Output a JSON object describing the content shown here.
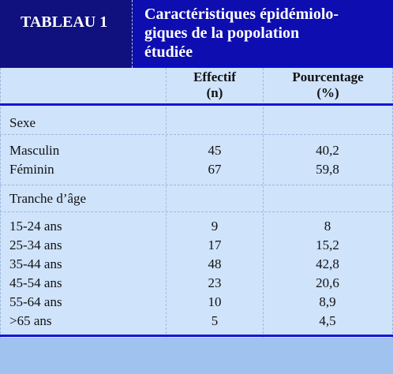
{
  "table": {
    "label": "TABLEAU 1",
    "title_lines": [
      "Caractéristiques épidémiolo-",
      "giques de la popolation",
      "étudiée"
    ],
    "columns": {
      "effectif": [
        "Effectif",
        "(n)"
      ],
      "pourcentage": [
        "Pourcentage",
        "(%)"
      ]
    },
    "sections": [
      {
        "name": "Sexe",
        "rows": [
          {
            "label": "Masculin",
            "n": "45",
            "pct": "40,2"
          },
          {
            "label": "Féminin",
            "n": "67",
            "pct": "59,8"
          }
        ]
      },
      {
        "name": "Tranche d’âge",
        "rows": [
          {
            "label": "15-24 ans",
            "n": "9",
            "pct": "8"
          },
          {
            "label": "25-34 ans",
            "n": "17",
            "pct": "15,2"
          },
          {
            "label": "35-44 ans",
            "n": "48",
            "pct": "42,8"
          },
          {
            "label": "45-54 ans",
            "n": "23",
            "pct": "20,6"
          },
          {
            "label": "55-64 ans",
            "n": "10",
            "pct": "8,9"
          },
          {
            "label": ">65 ans",
            "n": "5",
            "pct": "4,5"
          }
        ]
      }
    ]
  },
  "colors": {
    "header_dark": "#10107e",
    "header_blue": "#0d0db0",
    "body_bg": "#cfe3fb",
    "rule": "#1515d8",
    "footer": "#9fc2ef"
  }
}
